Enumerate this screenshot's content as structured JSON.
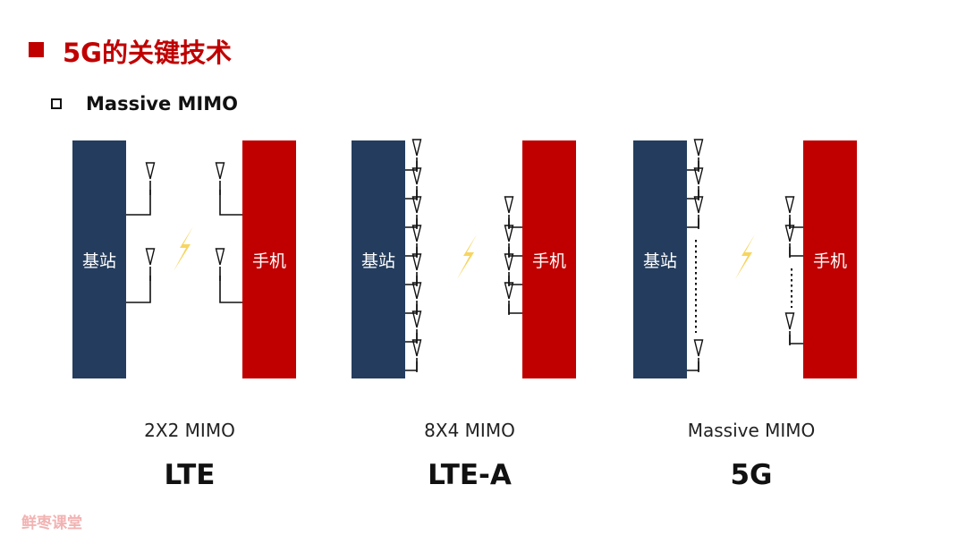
{
  "header": {
    "title": "5G的关键技术",
    "subtitle": "Massive MIMO"
  },
  "panels": [
    {
      "base_station_label": "基站",
      "phone_label": "手机",
      "mimo_label": "2X2 MIMO",
      "generation": "LTE",
      "base_station_antennas": 2,
      "phone_antennas": 2
    },
    {
      "base_station_label": "基站",
      "phone_label": "手机",
      "mimo_label": "8X4 MIMO",
      "generation": "LTE-A",
      "base_station_antennas": 8,
      "phone_antennas": 4
    },
    {
      "base_station_label": "基站",
      "phone_label": "手机",
      "mimo_label": "Massive MIMO",
      "generation": "5G",
      "base_station_antennas": "many",
      "phone_antennas": "many"
    }
  ],
  "watermark": "鲜枣课堂",
  "colors": {
    "accent_red": "#c00000",
    "base_station_blue": "#243d5e",
    "lightning_yellow": "#f7d560"
  }
}
